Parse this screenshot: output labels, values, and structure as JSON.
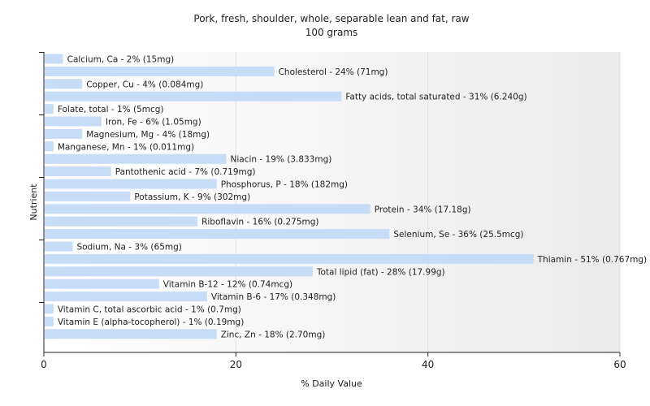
{
  "chart_data": {
    "type": "bar",
    "orientation": "horizontal",
    "title": "Pork, fresh, shoulder, whole, separable lean and fat, raw",
    "subtitle": "100 grams",
    "xlabel": "% Daily Value",
    "ylabel": "Nutrient",
    "xlim": [
      0,
      60
    ],
    "xticks": [
      0,
      20,
      40,
      60
    ],
    "grid": true,
    "bar_color": "#c6dcf7",
    "categories": [
      "Calcium, Ca",
      "Cholesterol",
      "Copper, Cu",
      "Fatty acids, total saturated",
      "Folate, total",
      "Iron, Fe",
      "Magnesium, Mg",
      "Manganese, Mn",
      "Niacin",
      "Pantothenic acid",
      "Phosphorus, P",
      "Potassium, K",
      "Protein",
      "Riboflavin",
      "Selenium, Se",
      "Sodium, Na",
      "Thiamin",
      "Total lipid (fat)",
      "Vitamin B-12",
      "Vitamin B-6",
      "Vitamin C, total ascorbic acid",
      "Vitamin E (alpha-tocopherol)",
      "Zinc, Zn"
    ],
    "values": [
      2,
      24,
      4,
      31,
      1,
      6,
      4,
      1,
      19,
      7,
      18,
      9,
      34,
      16,
      36,
      3,
      51,
      28,
      12,
      17,
      1,
      1,
      18
    ],
    "labels": [
      "Calcium, Ca - 2% (15mg)",
      "Cholesterol - 24% (71mg)",
      "Copper, Cu - 4% (0.084mg)",
      "Fatty acids, total saturated - 31% (6.240g)",
      "Folate, total - 1% (5mcg)",
      "Iron, Fe - 6% (1.05mg)",
      "Magnesium, Mg - 4% (18mg)",
      "Manganese, Mn - 1% (0.011mg)",
      "Niacin - 19% (3.833mg)",
      "Pantothenic acid - 7% (0.719mg)",
      "Phosphorus, P - 18% (182mg)",
      "Potassium, K - 9% (302mg)",
      "Protein - 34% (17.18g)",
      "Riboflavin - 16% (0.275mg)",
      "Selenium, Se - 36% (25.5mcg)",
      "Sodium, Na - 3% (65mg)",
      "Thiamin - 51% (0.767mg)",
      "Total lipid (fat) - 28% (17.99g)",
      "Vitamin B-12 - 12% (0.74mcg)",
      "Vitamin B-6 - 17% (0.348mg)",
      "Vitamin C, total ascorbic acid - 1% (0.7mg)",
      "Vitamin E (alpha-tocopherol) - 1% (0.19mg)",
      "Zinc, Zn - 18% (2.70mg)"
    ]
  }
}
